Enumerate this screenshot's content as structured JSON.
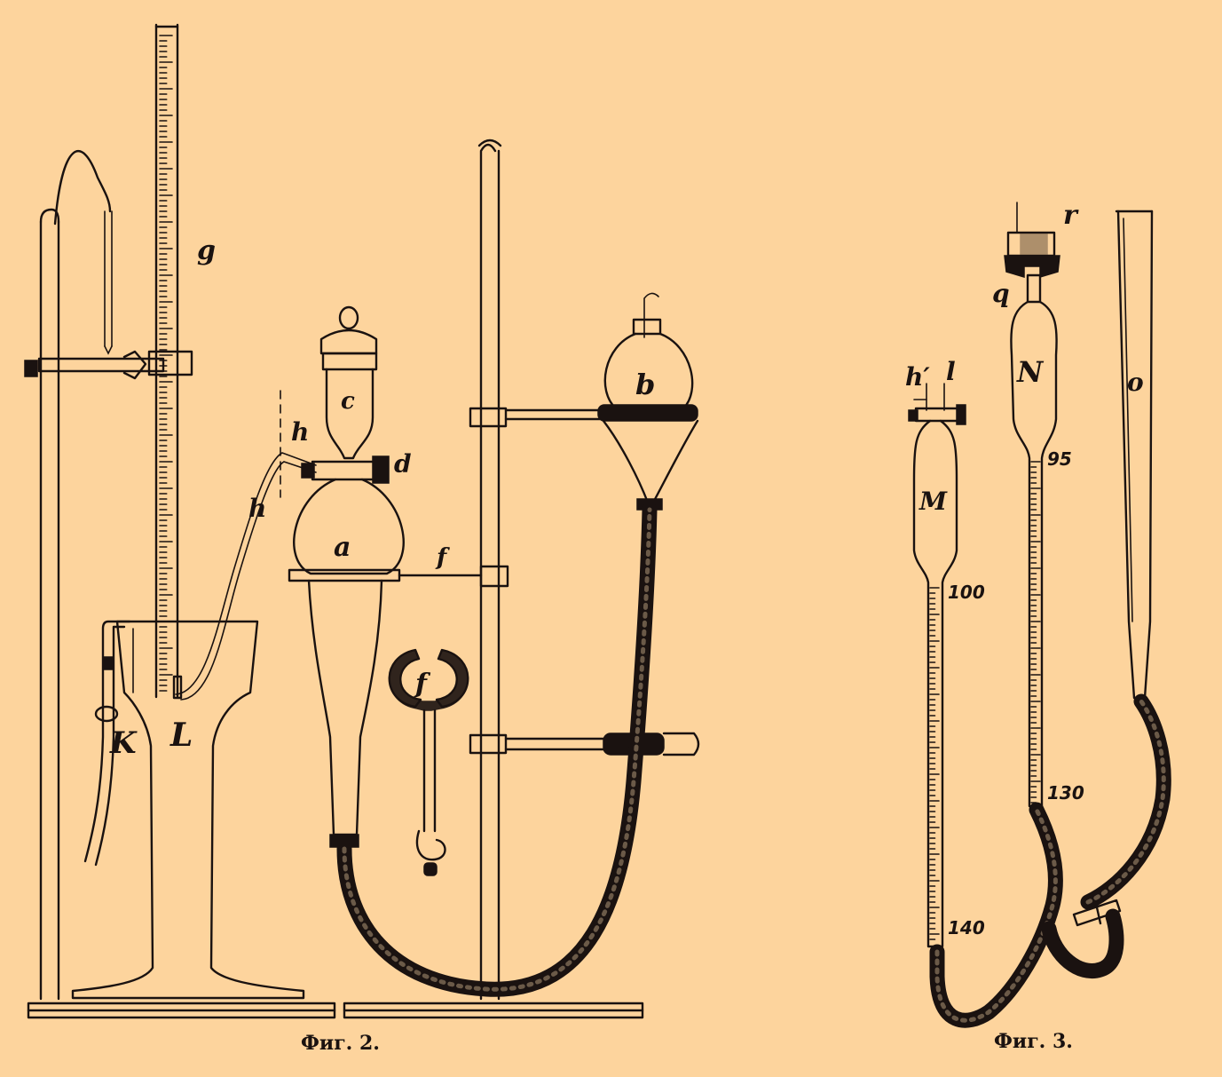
{
  "figure2": {
    "caption": "Фиг. 2.",
    "labels": {
      "g": "g",
      "h_upper": "h",
      "h_lower": "h",
      "c": "c",
      "d": "d",
      "a": "a",
      "f_rod": "f",
      "b": "b",
      "f_clamp": "f",
      "K": "K",
      "L": "L"
    }
  },
  "figure3": {
    "caption": "Фиг. 3.",
    "labels": {
      "r": "r",
      "q": "q",
      "h_prime": "h′",
      "l": "l",
      "N": "N",
      "M": "M",
      "o": "o"
    },
    "scale_marks": {
      "n_top": "95",
      "m_top": "100",
      "n_bottom": "130",
      "m_bottom": "140"
    }
  },
  "colors": {
    "paper": "#fdd49d",
    "ink": "#1a1210"
  }
}
